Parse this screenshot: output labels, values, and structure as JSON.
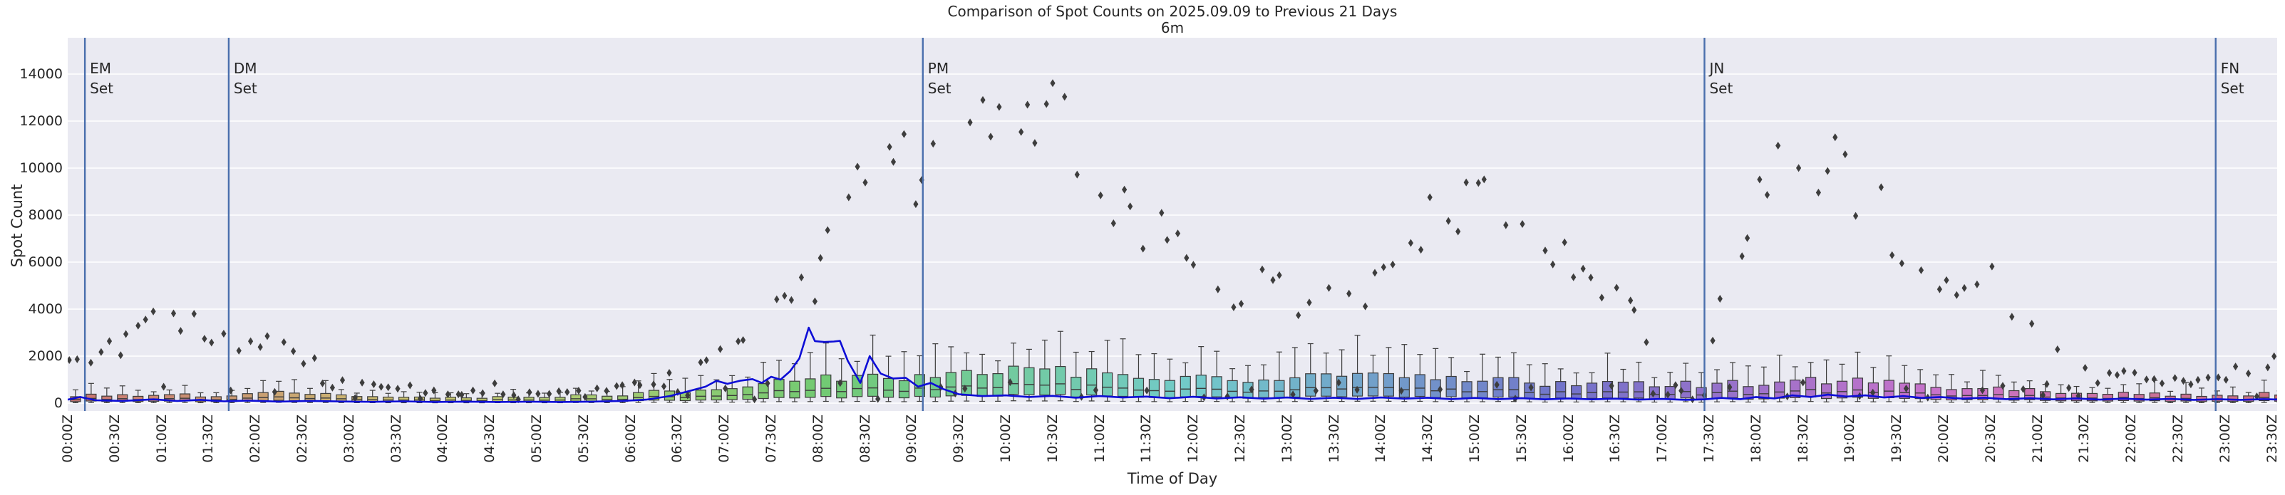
{
  "figure": {
    "title": "Comparison of Spot Counts on 2025.09.09 to Previous 21 Days",
    "subtitle": "6m",
    "xlabel": "Time of Day",
    "ylabel": "Spot Count"
  },
  "colors": {
    "figure_bg": "#ffffff",
    "plot_bg": "#eaeaf2",
    "gridline": "#ffffff",
    "scatter_diamond": "#3d3d3d",
    "current_day_line": "#0d0dd6",
    "event_line": "#4a6fad",
    "box_edge": "#3c3c3c",
    "text": "#262626"
  },
  "chart_data": {
    "type": "composite",
    "title": "Comparison of Spot Counts on 2025.09.09 to Previous 21 Days",
    "subtitle": "6m",
    "xlabel": "Time of Day",
    "ylabel": "Spot Count",
    "grid": "horizontal white gridlines on lavender panel",
    "legend": "none",
    "ylim": [
      -350,
      15550
    ],
    "y_ticks": [
      0,
      2000,
      4000,
      6000,
      8000,
      10000,
      12000,
      14000
    ],
    "x_minutes_range": [
      0,
      1440
    ],
    "x_tick_step_minutes": 30,
    "x_tick_labels": [
      "00:00Z",
      "00:30Z",
      "01:00Z",
      "01:30Z",
      "02:00Z",
      "02:30Z",
      "03:00Z",
      "03:30Z",
      "04:00Z",
      "04:30Z",
      "05:00Z",
      "05:30Z",
      "06:00Z",
      "06:30Z",
      "07:00Z",
      "07:30Z",
      "08:00Z",
      "08:30Z",
      "09:00Z",
      "09:30Z",
      "10:00Z",
      "10:30Z",
      "11:00Z",
      "11:30Z",
      "12:00Z",
      "12:30Z",
      "13:00Z",
      "13:30Z",
      "14:00Z",
      "14:30Z",
      "15:00Z",
      "15:30Z",
      "16:00Z",
      "16:30Z",
      "17:00Z",
      "17:30Z",
      "18:00Z",
      "18:30Z",
      "19:00Z",
      "19:30Z",
      "20:00Z",
      "20:30Z",
      "21:00Z",
      "21:30Z",
      "22:00Z",
      "22:30Z",
      "23:00Z",
      "23:30Z"
    ],
    "events": [
      {
        "name": "EM Set",
        "label_lines": [
          "EM",
          "Set"
        ],
        "minute": 11
      },
      {
        "name": "DM Set",
        "label_lines": [
          "DM",
          "Set"
        ],
        "minute": 103
      },
      {
        "name": "PM Set",
        "label_lines": [
          "PM",
          "Set"
        ],
        "minute": 547
      },
      {
        "name": "JN Set",
        "label_lines": [
          "JN",
          "Set"
        ],
        "minute": 1047
      },
      {
        "name": "FN Set",
        "label_lines": [
          "FN",
          "Set"
        ],
        "minute": 1374
      }
    ],
    "series": [
      {
        "name": "previous-21-days-spot-counts-6min",
        "type": "scatter",
        "marker": "thin-diamond",
        "step_minutes": 6,
        "value_spread_fraction": 0.18,
        "low_band": {
          "fraction": 0.25,
          "min": 150,
          "max": 900
        },
        "envelope_anchors": [
          [
            0,
            1500
          ],
          [
            30,
            2400
          ],
          [
            60,
            3700
          ],
          [
            75,
            3600
          ],
          [
            90,
            3100
          ],
          [
            105,
            2700
          ],
          [
            120,
            2300
          ],
          [
            135,
            2600
          ],
          [
            150,
            1900
          ],
          [
            165,
            1400
          ],
          [
            180,
            950
          ],
          [
            210,
            650
          ],
          [
            240,
            430
          ],
          [
            270,
            390
          ],
          [
            300,
            430
          ],
          [
            330,
            530
          ],
          [
            360,
            760
          ],
          [
            390,
            1150
          ],
          [
            420,
            2400
          ],
          [
            435,
            3200
          ],
          [
            450,
            3700
          ],
          [
            465,
            4300
          ],
          [
            480,
            5600
          ],
          [
            495,
            7200
          ],
          [
            510,
            9300
          ],
          [
            525,
            10200
          ],
          [
            540,
            10000
          ],
          [
            555,
            10300
          ],
          [
            570,
            11000
          ],
          [
            585,
            12600
          ],
          [
            600,
            14200
          ],
          [
            615,
            13400
          ],
          [
            630,
            11900
          ],
          [
            645,
            10300
          ],
          [
            660,
            9000
          ],
          [
            675,
            8300
          ],
          [
            690,
            7400
          ],
          [
            705,
            6600
          ],
          [
            720,
            6000
          ],
          [
            735,
            5300
          ],
          [
            750,
            4800
          ],
          [
            765,
            5200
          ],
          [
            780,
            4600
          ],
          [
            795,
            4200
          ],
          [
            810,
            4800
          ],
          [
            825,
            4400
          ],
          [
            840,
            5400
          ],
          [
            855,
            6500
          ],
          [
            870,
            7700
          ],
          [
            885,
            8200
          ],
          [
            900,
            8000
          ],
          [
            915,
            8300
          ],
          [
            930,
            7200
          ],
          [
            945,
            6400
          ],
          [
            960,
            5700
          ],
          [
            975,
            5100
          ],
          [
            990,
            4300
          ],
          [
            1005,
            3400
          ],
          [
            1020,
            2600
          ],
          [
            1035,
            2100
          ],
          [
            1050,
            2700
          ],
          [
            1065,
            5200
          ],
          [
            1080,
            8300
          ],
          [
            1095,
            9700
          ],
          [
            1110,
            10200
          ],
          [
            1125,
            9800
          ],
          [
            1140,
            9400
          ],
          [
            1155,
            8300
          ],
          [
            1170,
            7000
          ],
          [
            1185,
            5700
          ],
          [
            1200,
            4800
          ],
          [
            1215,
            4300
          ],
          [
            1230,
            5200
          ],
          [
            1245,
            3700
          ],
          [
            1260,
            2800
          ],
          [
            1275,
            2200
          ],
          [
            1290,
            1800
          ],
          [
            1305,
            1500
          ],
          [
            1320,
            1200
          ],
          [
            1335,
            1000
          ],
          [
            1350,
            900
          ],
          [
            1365,
            950
          ],
          [
            1380,
            1150
          ],
          [
            1395,
            1500
          ],
          [
            1410,
            1950
          ],
          [
            1425,
            2300
          ],
          [
            1439,
            2600
          ]
        ],
        "max_value": 14800
      },
      {
        "name": "previous-21-days-boxplot-10min",
        "type": "box",
        "step_minutes": 10,
        "palette": "husl hue cycles with time of day",
        "stat_ratios": {
          "whisker_low": 0.12,
          "q1": 0.45,
          "q3": 1.9,
          "whisker_high": 3.6
        },
        "median_anchors": [
          [
            0,
            180
          ],
          [
            30,
            160
          ],
          [
            60,
            200
          ],
          [
            90,
            150
          ],
          [
            120,
            210
          ],
          [
            150,
            240
          ],
          [
            180,
            160
          ],
          [
            210,
            140
          ],
          [
            240,
            120
          ],
          [
            270,
            130
          ],
          [
            300,
            140
          ],
          [
            330,
            160
          ],
          [
            360,
            200
          ],
          [
            390,
            280
          ],
          [
            420,
            360
          ],
          [
            450,
            440
          ],
          [
            480,
            520
          ],
          [
            510,
            560
          ],
          [
            540,
            640
          ],
          [
            570,
            680
          ],
          [
            600,
            720
          ],
          [
            630,
            700
          ],
          [
            660,
            660
          ],
          [
            690,
            620
          ],
          [
            720,
            580
          ],
          [
            750,
            560
          ],
          [
            780,
            540
          ],
          [
            810,
            620
          ],
          [
            840,
            580
          ],
          [
            870,
            540
          ],
          [
            900,
            500
          ],
          [
            930,
            480
          ],
          [
            960,
            440
          ],
          [
            990,
            420
          ],
          [
            1020,
            400
          ],
          [
            1050,
            420
          ],
          [
            1080,
            460
          ],
          [
            1110,
            520
          ],
          [
            1140,
            480
          ],
          [
            1170,
            420
          ],
          [
            1200,
            360
          ],
          [
            1230,
            320
          ],
          [
            1260,
            280
          ],
          [
            1290,
            240
          ],
          [
            1320,
            200
          ],
          [
            1350,
            180
          ],
          [
            1380,
            190
          ],
          [
            1410,
            210
          ],
          [
            1440,
            210
          ]
        ]
      },
      {
        "name": "current-day-2025-09-09-line",
        "type": "line",
        "color": "#0d0dd6",
        "points": [
          [
            0,
            150
          ],
          [
            8,
            260
          ],
          [
            18,
            120
          ],
          [
            35,
            95
          ],
          [
            55,
            160
          ],
          [
            70,
            90
          ],
          [
            85,
            140
          ],
          [
            100,
            75
          ],
          [
            115,
            110
          ],
          [
            135,
            65
          ],
          [
            155,
            95
          ],
          [
            175,
            70
          ],
          [
            195,
            55
          ],
          [
            215,
            75
          ],
          [
            235,
            50
          ],
          [
            255,
            65
          ],
          [
            275,
            50
          ],
          [
            295,
            60
          ],
          [
            315,
            50
          ],
          [
            335,
            65
          ],
          [
            355,
            95
          ],
          [
            370,
            150
          ],
          [
            385,
            300
          ],
          [
            398,
            520
          ],
          [
            408,
            700
          ],
          [
            415,
            950
          ],
          [
            422,
            820
          ],
          [
            430,
            950
          ],
          [
            438,
            1020
          ],
          [
            444,
            860
          ],
          [
            450,
            1120
          ],
          [
            456,
            1000
          ],
          [
            462,
            1350
          ],
          [
            468,
            1900
          ],
          [
            474,
            3210
          ],
          [
            478,
            2640
          ],
          [
            484,
            2600
          ],
          [
            490,
            2620
          ],
          [
            494,
            2650
          ],
          [
            499,
            1800
          ],
          [
            507,
            860
          ],
          [
            513,
            2000
          ],
          [
            520,
            1260
          ],
          [
            528,
            1050
          ],
          [
            536,
            1080
          ],
          [
            544,
            700
          ],
          [
            552,
            860
          ],
          [
            560,
            600
          ],
          [
            570,
            380
          ],
          [
            585,
            300
          ],
          [
            600,
            330
          ],
          [
            615,
            260
          ],
          [
            630,
            310
          ],
          [
            645,
            230
          ],
          [
            660,
            300
          ],
          [
            675,
            240
          ],
          [
            690,
            280
          ],
          [
            705,
            210
          ],
          [
            720,
            270
          ],
          [
            735,
            200
          ],
          [
            750,
            250
          ],
          [
            765,
            190
          ],
          [
            780,
            240
          ],
          [
            795,
            180
          ],
          [
            810,
            230
          ],
          [
            825,
            180
          ],
          [
            840,
            240
          ],
          [
            855,
            190
          ],
          [
            870,
            230
          ],
          [
            885,
            170
          ],
          [
            900,
            220
          ],
          [
            915,
            170
          ],
          [
            930,
            210
          ],
          [
            945,
            160
          ],
          [
            960,
            200
          ],
          [
            975,
            160
          ],
          [
            990,
            190
          ],
          [
            1005,
            150
          ],
          [
            1020,
            180
          ],
          [
            1035,
            140
          ],
          [
            1047,
            160
          ],
          [
            1058,
            220
          ],
          [
            1070,
            170
          ],
          [
            1080,
            260
          ],
          [
            1092,
            200
          ],
          [
            1103,
            330
          ],
          [
            1115,
            260
          ],
          [
            1126,
            360
          ],
          [
            1138,
            280
          ],
          [
            1150,
            330
          ],
          [
            1162,
            240
          ],
          [
            1174,
            300
          ],
          [
            1186,
            220
          ],
          [
            1198,
            260
          ],
          [
            1212,
            190
          ],
          [
            1226,
            230
          ],
          [
            1240,
            170
          ],
          [
            1255,
            210
          ],
          [
            1270,
            160
          ],
          [
            1285,
            200
          ],
          [
            1300,
            150
          ],
          [
            1315,
            190
          ],
          [
            1330,
            150
          ],
          [
            1345,
            180
          ],
          [
            1360,
            140
          ],
          [
            1375,
            170
          ],
          [
            1390,
            140
          ],
          [
            1405,
            170
          ],
          [
            1420,
            140
          ],
          [
            1435,
            160
          ],
          [
            1439,
            155
          ]
        ]
      }
    ]
  }
}
